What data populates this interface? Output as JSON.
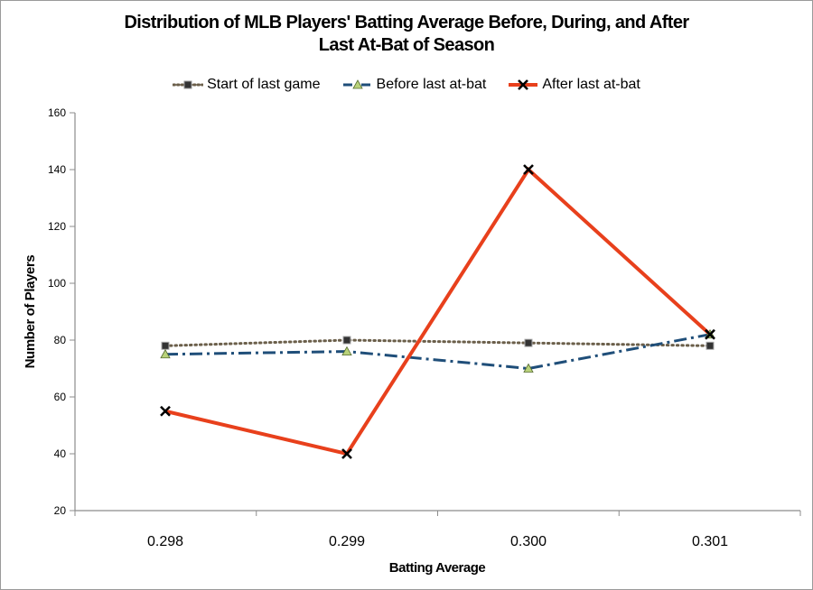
{
  "chart_data": {
    "type": "line",
    "title": "Distribution of MLB Players' Batting Average Before, During, and After Last At-Bat of Season",
    "title_lines": [
      "Distribution of MLB Players' Batting Average Before, During, and After",
      "Last At-Bat of Season"
    ],
    "xlabel": "Batting Average",
    "ylabel": "Number of Players",
    "categories": [
      "0.298",
      "0.299",
      "0.300",
      "0.301"
    ],
    "ylim": [
      20,
      160
    ],
    "yticks": [
      20,
      40,
      60,
      80,
      100,
      120,
      140,
      160
    ],
    "grid": false,
    "legend_position": "top",
    "series": [
      {
        "name": "Start of last game",
        "values": [
          78,
          80,
          79,
          78
        ],
        "color": "#6b5f4a",
        "style": "dotted",
        "marker": "square-icon"
      },
      {
        "name": "Before last at-bat",
        "values": [
          75,
          76,
          70,
          82
        ],
        "color": "#1f4e79",
        "style": "dash-dot",
        "marker": "triangle-icon"
      },
      {
        "name": "After last at-bat",
        "values": [
          55,
          40,
          140,
          82
        ],
        "color": "#e8401c",
        "style": "solid",
        "marker": "x-icon"
      }
    ]
  }
}
